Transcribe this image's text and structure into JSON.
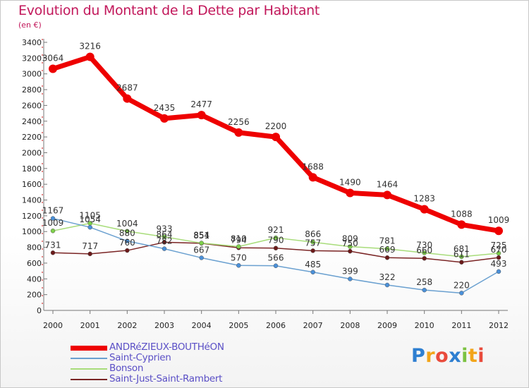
{
  "title": "Evolution du Montant de la Dette par Habitant",
  "unit": "(en €)",
  "logo": {
    "letters": [
      "P",
      "r",
      "o",
      "x",
      "i",
      "t",
      "i"
    ],
    "colors": [
      "#2e7fd1",
      "#f2a51a",
      "#e94b3c",
      "#2e7fd1",
      "#7cc242",
      "#f2a51a",
      "#e94b3c"
    ]
  },
  "chart_data": {
    "type": "line",
    "categories": [
      "2000",
      "2001",
      "2002",
      "2003",
      "2004",
      "2005",
      "2006",
      "2007",
      "2008",
      "2009",
      "2010",
      "2011",
      "2012"
    ],
    "ylim": [
      0,
      3400
    ],
    "yticks": [
      0,
      200,
      400,
      600,
      800,
      1000,
      1200,
      1400,
      1600,
      1800,
      2000,
      2200,
      2400,
      2600,
      2800,
      3000,
      3200,
      3400
    ],
    "grid": false,
    "legend": "bottom-left",
    "series": [
      {
        "name": "ANDRéZIEUX-BOUTHéON",
        "color": "#ee0000",
        "marker": "#ee0000",
        "width": 7,
        "values": [
          3064,
          3216,
          2687,
          2435,
          2477,
          2256,
          2200,
          1688,
          1490,
          1464,
          1283,
          1088,
          1009
        ]
      },
      {
        "name": "Saint-Cyprien",
        "color": "#6aa0d0",
        "marker": "#4a90d9",
        "width": 1.5,
        "values": [
          1167,
          1054,
          880,
          782,
          667,
          570,
          566,
          485,
          399,
          322,
          258,
          220,
          493
        ]
      },
      {
        "name": "Bonson",
        "color": "#a8dc7a",
        "marker": "#7ed04a",
        "width": 1.5,
        "values": [
          1009,
          1105,
          1004,
          933,
          854,
          810,
          921,
          866,
          809,
          781,
          730,
          681,
          725
        ]
      },
      {
        "name": "Saint-Just-Saint-Rambert",
        "color": "#7a2424",
        "marker": "#6b1a1a",
        "width": 1.5,
        "values": [
          731,
          717,
          760,
          864,
          851,
          794,
          790,
          757,
          750,
          669,
          660,
          611,
          670
        ]
      }
    ],
    "labels": [
      [
        "3064",
        "3216",
        "2687",
        "2435",
        "2477",
        "2256",
        "2200",
        "1688",
        "1490",
        "1464",
        "1283",
        "1088",
        "1009"
      ],
      [
        "1167",
        "1054",
        "880",
        "782",
        "667",
        "570",
        "566",
        "485",
        "399",
        "322",
        "258",
        "220",
        "493"
      ],
      [
        "1009",
        "1105",
        "1004",
        "933",
        "854",
        "810",
        "921",
        "866",
        "809",
        "781",
        "730",
        "681",
        "725"
      ],
      [
        "731",
        "717",
        "760",
        "864",
        "851",
        "794",
        "790",
        "757",
        "750",
        "669",
        "660",
        "611",
        "670"
      ]
    ]
  }
}
